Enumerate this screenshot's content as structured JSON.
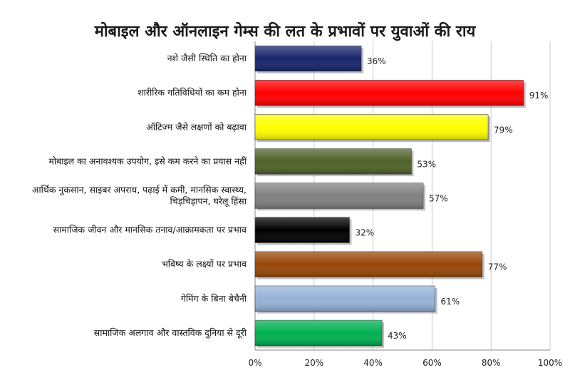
{
  "chart_data": {
    "type": "bar",
    "orientation": "horizontal",
    "title": "मोबाइल और ऑनलाइन गेम्स की लत के प्रभावों पर युवाओं की राय",
    "xlabel": "",
    "ylabel": "",
    "xlim": [
      0,
      100
    ],
    "grid": true,
    "legend": "none",
    "x_ticks": [
      "0%",
      "20%",
      "40%",
      "60%",
      "80%",
      "100%"
    ],
    "categories": [
      [
        "नशे जैसी स्थिति का होना"
      ],
      [
        "शारीरिक गतिविधियों का कम होना"
      ],
      [
        "ऑटिज्म जैसे लक्षणों को बढ़ावा"
      ],
      [
        "मोबाइल का अनावश्यक उपयोग, इसे कम करने का प्रयास नहीं"
      ],
      [
        "आर्थिक नुकसान, साइबर अपराध, पढ़ाई में कमी, मानसिक स्वास्थ्य,",
        "चिड़चिड़ापन, घरेलू हिंसा"
      ],
      [
        "सामाजिक जीवन और मानसिक तनाव/आक्रामकता  पर प्रभाव"
      ],
      [
        "भविष्य के लक्ष्यों पर प्रभाव"
      ],
      [
        "गेमिंग के बिना बेचैनी"
      ],
      [
        "सामाजिक अलगाव और वास्तविक दुनिया से दूरी"
      ]
    ],
    "values": [
      36,
      91,
      79,
      53,
      57,
      32,
      77,
      61,
      43
    ],
    "value_labels": [
      "36%",
      "91%",
      "79%",
      "53%",
      "57%",
      "32%",
      "77%",
      "61%",
      "43%"
    ],
    "colors": [
      "#17246b",
      "#ff0000",
      "#ffff00",
      "#4f6228",
      "#808080",
      "#000000",
      "#984807",
      "#95b3d7",
      "#00b050"
    ]
  }
}
